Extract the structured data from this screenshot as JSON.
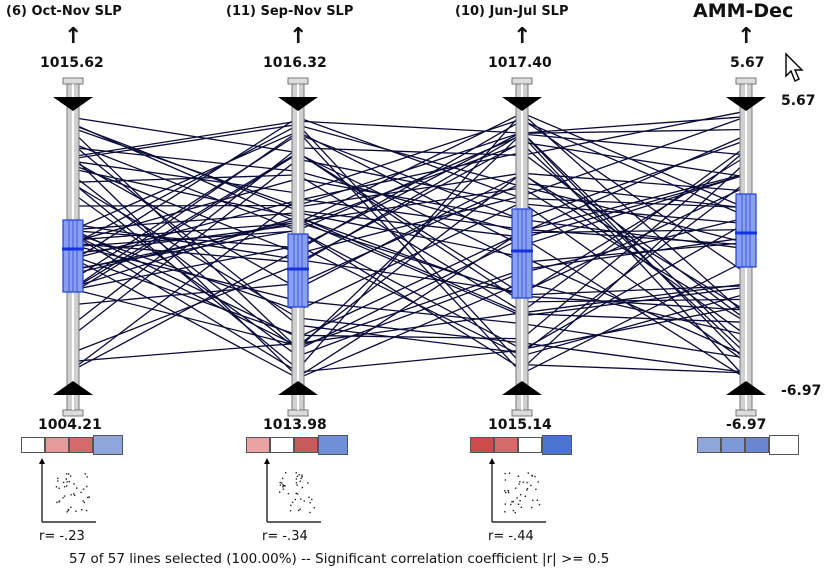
{
  "axes": [
    {
      "title": "(6) Oct-Nov SLP",
      "max": "1015.62",
      "min": "1004.21",
      "r": "r= -.23",
      "swatches": [
        "#ffffff",
        "#e79a9a",
        "#d46a6a",
        "#8fa6da"
      ],
      "big_index": 3
    },
    {
      "title": "(11) Sep-Nov SLP",
      "max": "1016.32",
      "min": "1013.98",
      "r": "r= -.34",
      "swatches": [
        "#e9a3a3",
        "#ffffff",
        "#c75a5a",
        "#6f8fd6"
      ],
      "big_index": 3
    },
    {
      "title": "(10) Jun-Jul SLP",
      "max": "1017.40",
      "min": "1015.14",
      "r": "r= -.44",
      "swatches": [
        "#cc4b4b",
        "#d46a6a",
        "#ffffff",
        "#4a74d0"
      ],
      "big_index": 3
    },
    {
      "title": "AMM-Dec",
      "max": "5.67",
      "min": "-6.97",
      "r": "",
      "swatches": [
        "#8fa6da",
        "#7e99d8",
        "#6a86d0",
        "#ffffff"
      ],
      "big_index": 3
    }
  ],
  "side_labels": {
    "top": "5.67",
    "bottom": "-6.97"
  },
  "footer": "57 of 57 lines selected (100.00%)  --  Significant correlation coefficient  |r| >= 0.5",
  "colors": {
    "lines": "#0b0b3a",
    "box_fill": "#8aa0ee",
    "box_stroke": "#1f3fd8",
    "median": "#1233dd",
    "axis_bar": "#d0d0d0"
  }
}
